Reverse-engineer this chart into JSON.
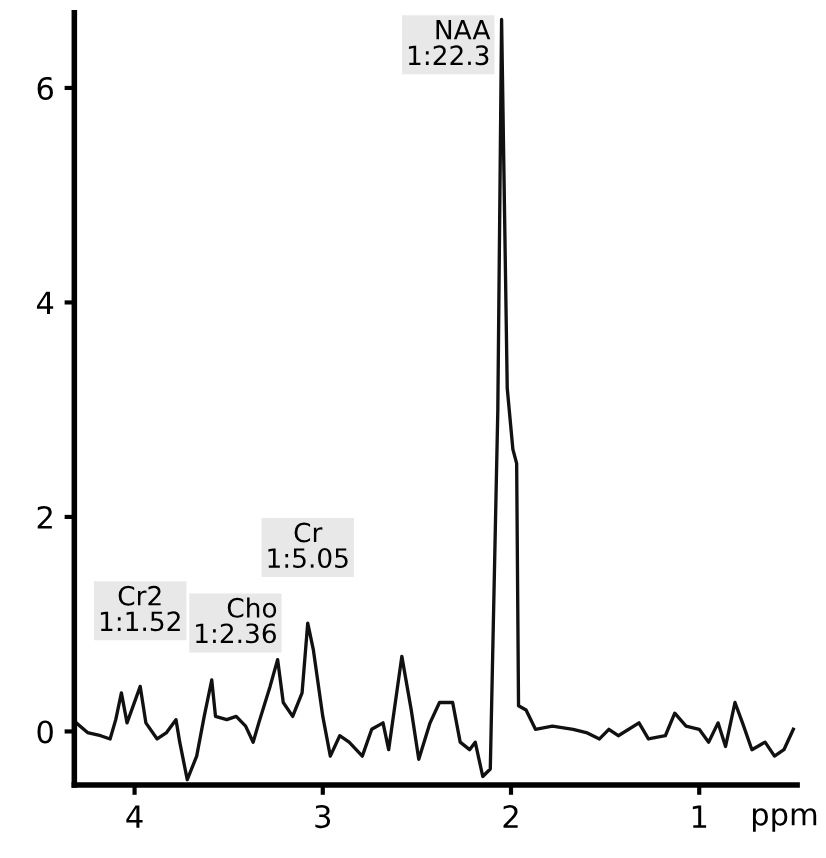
{
  "chart_data": {
    "type": "line",
    "xlabel": "ppm",
    "x": [
      4.31,
      4.25,
      4.18,
      4.13,
      4.1,
      4.07,
      4.04,
      3.97,
      3.94,
      3.88,
      3.83,
      3.78,
      3.76,
      3.72,
      3.67,
      3.63,
      3.59,
      3.57,
      3.51,
      3.46,
      3.41,
      3.37,
      3.34,
      3.28,
      3.24,
      3.21,
      3.16,
      3.11,
      3.08,
      3.05,
      3.0,
      2.96,
      2.91,
      2.86,
      2.79,
      2.74,
      2.68,
      2.65,
      2.58,
      2.53,
      2.49,
      2.43,
      2.38,
      2.31,
      2.27,
      2.22,
      2.19,
      2.15,
      2.11,
      2.07,
      2.05,
      2.02,
      1.99,
      1.97,
      1.96,
      1.92,
      1.87,
      1.78,
      1.67,
      1.6,
      1.53,
      1.48,
      1.43,
      1.32,
      1.27,
      1.18,
      1.13,
      1.07,
      1.0,
      0.95,
      0.9,
      0.86,
      0.81,
      0.77,
      0.72,
      0.65,
      0.6,
      0.55,
      0.5
    ],
    "series": [
      {
        "color": "#111111",
        "values": [
          0.08,
          -0.01,
          -0.04,
          -0.07,
          0.11,
          0.36,
          0.08,
          0.42,
          0.08,
          -0.07,
          -0.01,
          0.11,
          -0.1,
          -0.45,
          -0.23,
          0.14,
          0.48,
          0.14,
          0.11,
          0.14,
          0.05,
          -0.1,
          0.08,
          0.42,
          0.67,
          0.27,
          0.14,
          0.36,
          1.01,
          0.76,
          0.14,
          -0.23,
          -0.04,
          -0.1,
          -0.23,
          0.02,
          0.08,
          -0.17,
          0.7,
          0.2,
          -0.26,
          0.08,
          0.27,
          0.27,
          -0.1,
          -0.17,
          -0.1,
          -0.42,
          -0.35,
          3.0,
          6.64,
          3.2,
          2.63,
          2.5,
          0.24,
          0.2,
          0.02,
          0.05,
          0.02,
          -0.01,
          -0.07,
          0.02,
          -0.04,
          0.08,
          -0.07,
          -0.04,
          0.17,
          0.05,
          0.02,
          -0.1,
          0.08,
          -0.14,
          0.27,
          0.08,
          -0.17,
          -0.1,
          -0.23,
          -0.17,
          0.02
        ]
      }
    ],
    "xlim": [
      4.32,
      0.48
    ],
    "xticks": [
      4,
      3,
      2,
      1
    ],
    "ylim": [
      -0.5,
      6.7
    ],
    "yticks": [
      0,
      2,
      4,
      6
    ],
    "grid": false,
    "legend": false,
    "marker": "none",
    "line_style": "solid",
    "annotations": [
      {
        "text": "NAA\n1:22.3",
        "x": 2.05,
        "y": 6.64
      },
      {
        "text": "Cr\n1:5.05",
        "x": 3.08,
        "y": 1.01
      },
      {
        "text": "Cho\n1:2.36",
        "x": 3.24,
        "y": 0.67
      },
      {
        "text": "Cr2\n1:1.52",
        "x": 3.97,
        "y": 0.42
      }
    ]
  }
}
